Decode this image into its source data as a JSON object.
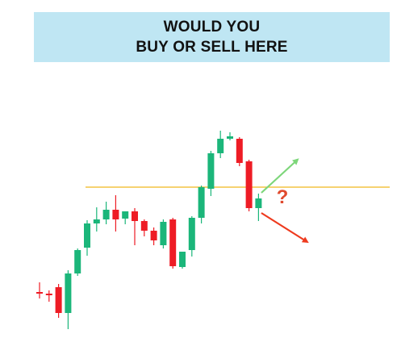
{
  "banner": {
    "line1": "WOULD YOU",
    "line2": "BUY OR SELL HERE"
  },
  "colors": {
    "banner_bg": "#bfe6f3",
    "bull": "#1bb67a",
    "bear": "#ee1c25",
    "level_line": "#f0b71c",
    "up_arrow": "#7dd67a",
    "down_arrow": "#ee3a1e",
    "question": "#e04a2e"
  },
  "chart_data": {
    "type": "candlestick",
    "xlabel": "",
    "ylabel": "",
    "grid": false,
    "ylim": [
      0,
      290
    ],
    "x_count": 27,
    "candles": [
      {
        "x": 0,
        "o": 50,
        "h": 62,
        "l": 42,
        "c": 48
      },
      {
        "x": 1,
        "o": 48,
        "h": 52,
        "l": 38,
        "c": 46
      },
      {
        "x": 2,
        "o": 56,
        "h": 60,
        "l": 18,
        "c": 24
      },
      {
        "x": 3,
        "o": 24,
        "h": 77,
        "l": 4,
        "c": 73
      },
      {
        "x": 4,
        "o": 73,
        "h": 104,
        "l": 70,
        "c": 102
      },
      {
        "x": 5,
        "o": 105,
        "h": 139,
        "l": 95,
        "c": 135
      },
      {
        "x": 6,
        "o": 135,
        "h": 155,
        "l": 125,
        "c": 140
      },
      {
        "x": 7,
        "o": 140,
        "h": 162,
        "l": 134,
        "c": 152
      },
      {
        "x": 8,
        "o": 152,
        "h": 170,
        "l": 125,
        "c": 140
      },
      {
        "x": 9,
        "o": 141,
        "h": 150,
        "l": 134,
        "c": 150
      },
      {
        "x": 10,
        "o": 150,
        "h": 154,
        "l": 108,
        "c": 138
      },
      {
        "x": 11,
        "o": 138,
        "h": 140,
        "l": 119,
        "c": 126
      },
      {
        "x": 12,
        "o": 126,
        "h": 130,
        "l": 108,
        "c": 114
      },
      {
        "x": 13,
        "o": 108,
        "h": 140,
        "l": 104,
        "c": 137
      },
      {
        "x": 14,
        "o": 140,
        "h": 142,
        "l": 79,
        "c": 82
      },
      {
        "x": 15,
        "o": 81,
        "h": 100,
        "l": 79,
        "c": 100
      },
      {
        "x": 16,
        "o": 102,
        "h": 144,
        "l": 94,
        "c": 142
      },
      {
        "x": 17,
        "o": 142,
        "h": 182,
        "l": 135,
        "c": 180
      },
      {
        "x": 18,
        "o": 178,
        "h": 225,
        "l": 169,
        "c": 222
      },
      {
        "x": 19,
        "o": 222,
        "h": 250,
        "l": 216,
        "c": 240
      },
      {
        "x": 20,
        "o": 240,
        "h": 248,
        "l": 238,
        "c": 243
      },
      {
        "x": 21,
        "o": 240,
        "h": 242,
        "l": 206,
        "c": 210
      },
      {
        "x": 22,
        "o": 212,
        "h": 214,
        "l": 150,
        "c": 154
      },
      {
        "x": 23,
        "o": 154,
        "h": 172,
        "l": 138,
        "c": 166
      }
    ],
    "level_line": {
      "value": 180,
      "from_x": 5
    },
    "annotations": [
      {
        "type": "arrow",
        "direction": "up",
        "from": [
          23.3,
          173
        ],
        "to": [
          27,
          213
        ]
      },
      {
        "type": "arrow",
        "direction": "down",
        "from": [
          23.3,
          148
        ],
        "to": [
          28,
          113
        ]
      },
      {
        "type": "text",
        "text": "?",
        "x": 25.5,
        "y": 160
      }
    ]
  }
}
